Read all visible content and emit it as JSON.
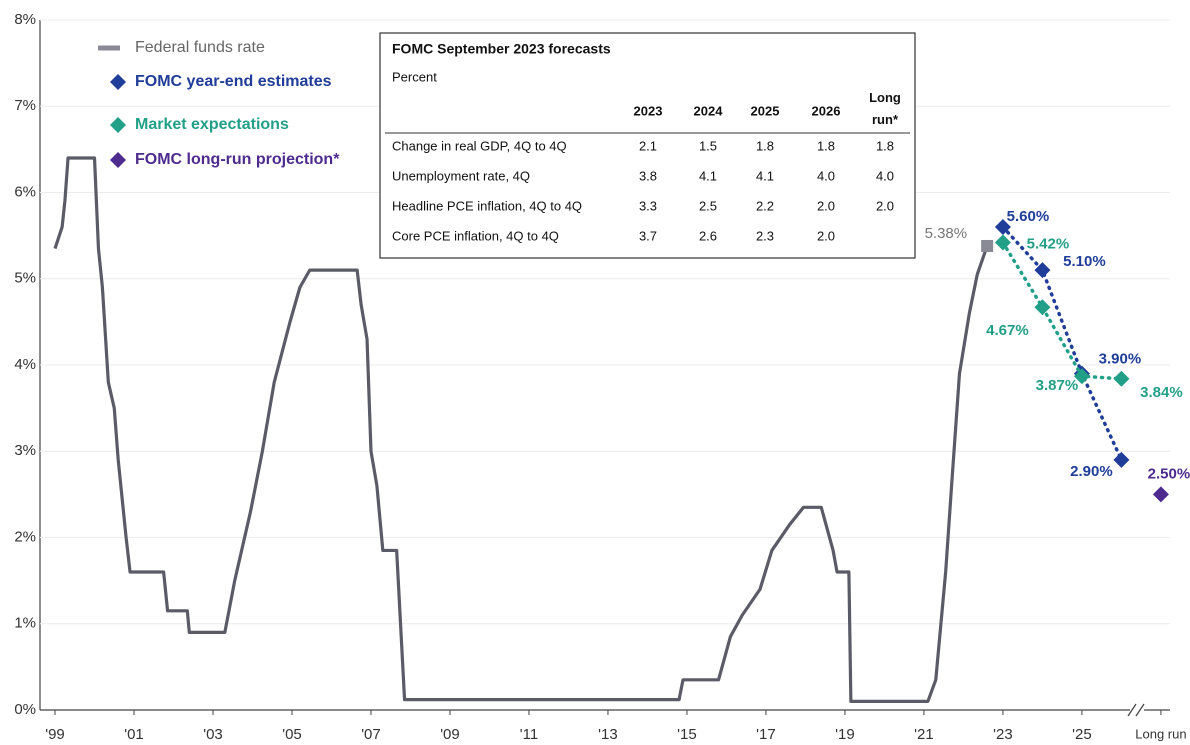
{
  "chart_data": {
    "type": "line",
    "ylim": [
      0,
      8
    ],
    "yticks": [
      {
        "value": 0,
        "label": "0%"
      },
      {
        "value": 1,
        "label": "1%"
      },
      {
        "value": 2,
        "label": "2%"
      },
      {
        "value": 3,
        "label": "3%"
      },
      {
        "value": 4,
        "label": "4%"
      },
      {
        "value": 5,
        "label": "5%"
      },
      {
        "value": 6,
        "label": "6%"
      },
      {
        "value": 7,
        "label": "7%"
      },
      {
        "value": 8,
        "label": "8%"
      }
    ],
    "xlim": [
      1998.62,
      2027.23
    ],
    "xticks": [
      {
        "value": 1999,
        "label": "'99"
      },
      {
        "value": 2001,
        "label": "'01"
      },
      {
        "value": 2003,
        "label": "'03"
      },
      {
        "value": 2005,
        "label": "'05"
      },
      {
        "value": 2007,
        "label": "'07"
      },
      {
        "value": 2009,
        "label": "'09"
      },
      {
        "value": 2011,
        "label": "'11"
      },
      {
        "value": 2013,
        "label": "'13"
      },
      {
        "value": 2015,
        "label": "'15"
      },
      {
        "value": 2017,
        "label": "'17"
      },
      {
        "value": 2019,
        "label": "'19"
      },
      {
        "value": 2021,
        "label": "'21"
      },
      {
        "value": 2023,
        "label": "'23"
      },
      {
        "value": 2025,
        "label": "'25"
      },
      {
        "value": 2027,
        "label": "Long run"
      }
    ],
    "grid": true,
    "series": [
      {
        "name": "Federal funds rate",
        "color": "#5b5b68",
        "style": "line",
        "x": [
          1999.0,
          1999.18,
          1999.25,
          1999.33,
          2000.0,
          2000.1,
          2000.2,
          2000.35,
          2000.5,
          2000.6,
          2000.8,
          2000.9,
          2001.75,
          2001.85,
          2002.35,
          2002.4,
          2003.3,
          2003.55,
          2003.95,
          2004.25,
          2004.55,
          2004.95,
          2005.2,
          2005.45,
          2006.65,
          2006.75,
          2006.9,
          2007.0,
          2007.15,
          2007.3,
          2007.65,
          2007.85,
          2014.8,
          2014.9,
          2015.8,
          2016.1,
          2016.4,
          2016.85,
          2017.15,
          2017.6,
          2017.95,
          2018.4,
          2018.7,
          2018.8,
          2019.1,
          2019.15,
          2021.1,
          2021.3,
          2021.55,
          2021.7,
          2021.9,
          2022.15,
          2022.35,
          2022.6
        ],
        "values": [
          5.35,
          5.6,
          5.9,
          6.4,
          6.4,
          5.35,
          4.9,
          3.8,
          3.5,
          2.9,
          2.0,
          1.6,
          1.6,
          1.15,
          1.15,
          0.9,
          0.9,
          1.5,
          2.3,
          3.0,
          3.8,
          4.5,
          4.9,
          5.1,
          5.1,
          4.7,
          4.3,
          3.0,
          2.6,
          1.85,
          1.85,
          0.12,
          0.12,
          0.35,
          0.35,
          0.85,
          1.1,
          1.4,
          1.85,
          2.15,
          2.35,
          2.35,
          1.85,
          1.6,
          1.6,
          0.1,
          0.1,
          0.35,
          1.6,
          2.6,
          3.9,
          4.6,
          5.05,
          5.38
        ],
        "value_labels": [
          null,
          null,
          null,
          null,
          null,
          null,
          null,
          null,
          null,
          null,
          null,
          null,
          null,
          null,
          null,
          null,
          null,
          null,
          null,
          null,
          null,
          null,
          null,
          null,
          null,
          null,
          null,
          null,
          null,
          null,
          null,
          null,
          null,
          null,
          null,
          null,
          null,
          null,
          null,
          null,
          null,
          null,
          null,
          null,
          null,
          null,
          null,
          null,
          null,
          null,
          null,
          null,
          null,
          "5.38%"
        ]
      },
      {
        "name": "FOMC year-end estimates",
        "color": "#1f3d99",
        "style": "dotted",
        "x": [
          2023,
          2024,
          2025,
          2026
        ],
        "values": [
          5.6,
          5.1,
          3.9,
          2.9
        ],
        "value_labels": [
          "5.60%",
          "5.10%",
          "3.90%",
          "2.90%"
        ]
      },
      {
        "name": "Market expectations",
        "color": "#22a087",
        "style": "dotted",
        "x": [
          2023,
          2024,
          2025,
          2026
        ],
        "values": [
          5.42,
          4.67,
          3.87,
          3.84
        ],
        "value_labels": [
          "5.42%",
          "4.67%",
          "3.87%",
          "3.84%"
        ]
      },
      {
        "name": "FOMC long-run projection*",
        "color": "#4d2b8f",
        "style": "points",
        "x": [
          2027
        ],
        "values": [
          2.5
        ],
        "value_labels": [
          "2.50%"
        ]
      }
    ],
    "table": {
      "title": "FOMC September 2023 forecasts",
      "subtitle": "Percent",
      "columns": [
        "2023",
        "2024",
        "2025",
        "2026",
        "Long run*"
      ],
      "rows": [
        {
          "label": "Change in real GDP, 4Q to 4Q",
          "values": [
            "2.1",
            "1.5",
            "1.8",
            "1.8",
            "1.8"
          ]
        },
        {
          "label": "Unemployment rate, 4Q",
          "values": [
            "3.8",
            "4.1",
            "4.1",
            "4.0",
            "4.0"
          ]
        },
        {
          "label": "Headline PCE inflation, 4Q to 4Q",
          "values": [
            "3.3",
            "2.5",
            "2.2",
            "2.0",
            "2.0"
          ]
        },
        {
          "label": "Core PCE inflation, 4Q to 4Q",
          "values": [
            "3.7",
            "2.6",
            "2.3",
            "2.0"
          ]
        }
      ]
    }
  }
}
